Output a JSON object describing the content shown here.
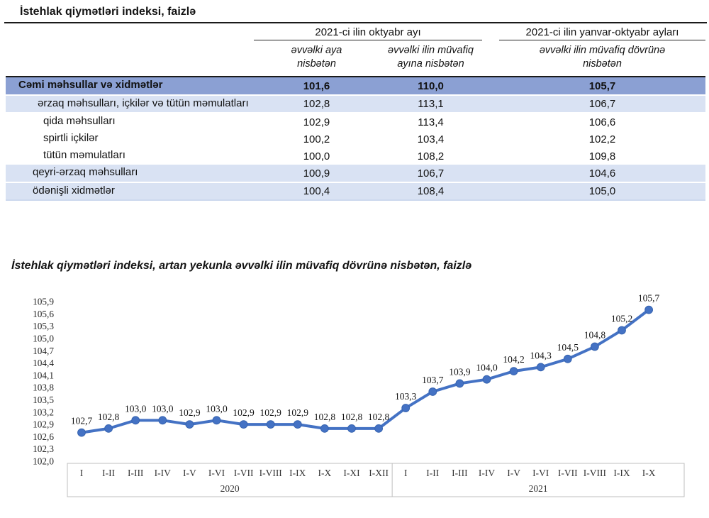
{
  "title": "İstehlak qiymətləri indeksi, faizlə",
  "table": {
    "col_groups": [
      {
        "label": "2021-ci ilin oktyabr ayı",
        "sub": [
          "əvvəlki aya nisbətən",
          "əvvəlki ilin müvafiq ayına nisbətən"
        ]
      },
      {
        "label": "2021-ci ilin yanvar-oktyabr ayları",
        "sub": [
          "əvvəlki ilin müvafiq dövrünə nisbətən"
        ]
      }
    ],
    "rows": [
      {
        "label": "Cəmi məhsullar və xidmətlər",
        "values": [
          "101,6",
          "110,0",
          "105,7"
        ],
        "indent": 0,
        "style": "total"
      },
      {
        "label": "ərzaq məhsulları, içkilər və tütün məmulatları",
        "values": [
          "102,8",
          "113,1",
          "106,7"
        ],
        "indent": 1,
        "style": "shaded"
      },
      {
        "label": "qida məhsulları",
        "values": [
          "102,9",
          "113,4",
          "106,6"
        ],
        "indent": 2,
        "style": "plain"
      },
      {
        "label": "spirtli içkilər",
        "values": [
          "100,2",
          "103,4",
          "102,2"
        ],
        "indent": 2,
        "style": "plain"
      },
      {
        "label": "tütün məmulatları",
        "values": [
          "100,0",
          "108,2",
          "109,8"
        ],
        "indent": 2,
        "style": "plain"
      },
      {
        "label": "qeyri-ərzaq məhsulları",
        "values": [
          "100,9",
          "106,7",
          "104,6"
        ],
        "indent": 3,
        "style": "shaded"
      },
      {
        "label": "ödənişli xidmətlər",
        "values": [
          "100,4",
          "108,4",
          "105,0"
        ],
        "indent": 3,
        "style": "shaded"
      }
    ]
  },
  "chart_title": "İstehlak qiymətləri indeksi, artan yekunla əvvəlki ilin müvafiq dövrünə nisbətən, faizlə",
  "chart_data": {
    "type": "line",
    "title": "İstehlak qiymətləri indeksi, artan yekunla əvvəlki ilin müvafiq dövrünə nisbətən, faizlə",
    "groups": [
      {
        "year": "2020",
        "categories": [
          "I",
          "I-II",
          "I-III",
          "I-IV",
          "I-V",
          "I-VI",
          "I-VII",
          "I-VIII",
          "I-IX",
          "I-X",
          "I-XI",
          "I-XII"
        ],
        "values": [
          102.7,
          102.8,
          103.0,
          103.0,
          102.9,
          103.0,
          102.9,
          102.9,
          102.9,
          102.8,
          102.8,
          102.8
        ]
      },
      {
        "year": "2021",
        "categories": [
          "I",
          "I-II",
          "I-III",
          "I-IV",
          "I-V",
          "I-VI",
          "I-VII",
          "I-VIII",
          "I-IX",
          "I-X"
        ],
        "values": [
          103.3,
          103.7,
          103.9,
          104.0,
          104.2,
          104.3,
          104.5,
          104.8,
          105.2,
          105.7
        ]
      }
    ],
    "ylim": [
      102.0,
      105.9
    ],
    "ytick_step": 0.3,
    "decimal_separator": ",",
    "data_labels": true,
    "grid": false,
    "legend": false,
    "line_color": "#4472C4",
    "marker_color": "#4472C4",
    "axis_frame_color": "#BFBFBF"
  },
  "colors": {
    "total_row_bg": "#8BA0D3",
    "shaded_row_bg": "#D9E2F3",
    "title_rule": "#1a1a1a"
  }
}
